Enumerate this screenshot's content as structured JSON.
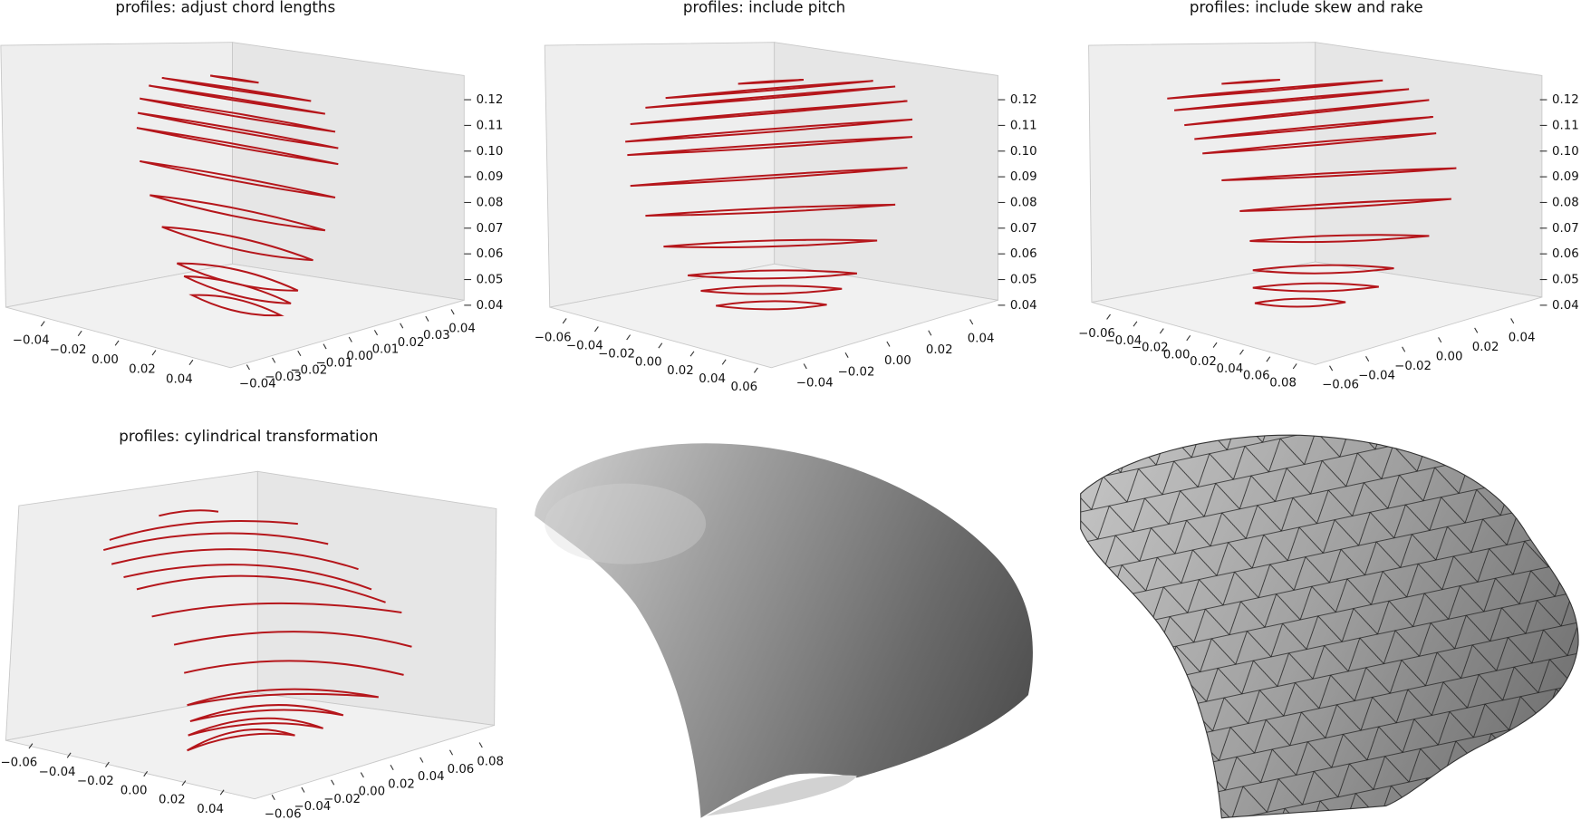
{
  "chart_data": [
    {
      "type": "line3d",
      "title": "profiles: adjust chord lengths",
      "color": "#b5161b",
      "xlim": [
        -0.05,
        0.05
      ],
      "xticks": [
        {
          "value": -0.04,
          "label": "−0.04"
        },
        {
          "value": -0.02,
          "label": "−0.02"
        },
        {
          "value": 0,
          "label": "0.00"
        },
        0.02,
        0.04
      ],
      "ylim": [
        -0.045,
        0.045
      ],
      "yticks": [
        {
          "value": -0.04,
          "label": "−0.04"
        },
        {
          "value": -0.03,
          "label": "−0.03"
        },
        {
          "value": -0.02,
          "label": "−0.02"
        },
        {
          "value": -0.01,
          "label": "−0.01"
        },
        {
          "value": 0,
          "label": "0.00"
        },
        0.01,
        0.02,
        0.03,
        0.04
      ],
      "zlim": [
        0.036,
        0.13
      ],
      "zticks": [
        0.04,
        0.05,
        0.06,
        0.07,
        0.08,
        0.09,
        {
          "value": 0.1,
          "label": "0.10"
        },
        0.11,
        0.12
      ],
      "profile_z": [
        0.128,
        0.124,
        0.12,
        0.114,
        0.108,
        0.102,
        0.089,
        0.076,
        0.064,
        0.051,
        0.046,
        0.04
      ]
    },
    {
      "type": "line3d",
      "title": "profiles: include pitch",
      "color": "#b5161b",
      "xlim": [
        -0.07,
        0.07
      ],
      "xticks": [
        {
          "value": -0.06,
          "label": "−0.06"
        },
        {
          "value": -0.04,
          "label": "−0.04"
        },
        {
          "value": -0.02,
          "label": "−0.02"
        },
        {
          "value": 0,
          "label": "0.00"
        },
        0.02,
        0.04,
        0.06
      ],
      "ylim": [
        -0.05,
        0.05
      ],
      "yticks": [
        {
          "value": -0.04,
          "label": "−0.04"
        },
        {
          "value": -0.02,
          "label": "−0.02"
        },
        {
          "value": 0,
          "label": "0.00"
        },
        0.02,
        0.04
      ],
      "zlim": [
        0.036,
        0.13
      ],
      "zticks": [
        0.04,
        0.05,
        0.06,
        0.07,
        0.08,
        0.09,
        {
          "value": 0.1,
          "label": "0.10"
        },
        0.11,
        0.12
      ],
      "profile_z": [
        0.127,
        0.124,
        0.121,
        0.115,
        0.108,
        0.102,
        0.09,
        0.077,
        0.064,
        0.052,
        0.046,
        0.04
      ]
    },
    {
      "type": "line3d",
      "title": "profiles: include skew and rake",
      "color": "#b5161b",
      "xlim": [
        -0.07,
        0.09
      ],
      "xticks": [
        {
          "value": -0.06,
          "label": "−0.06"
        },
        {
          "value": -0.04,
          "label": "−0.04"
        },
        {
          "value": -0.02,
          "label": "−0.02"
        },
        {
          "value": 0,
          "label": "0.00"
        },
        0.02,
        0.04,
        0.06,
        0.08
      ],
      "ylim": [
        -0.07,
        0.05
      ],
      "yticks": [
        {
          "value": -0.06,
          "label": "−0.06"
        },
        {
          "value": -0.04,
          "label": "−0.04"
        },
        {
          "value": -0.02,
          "label": "−0.02"
        },
        {
          "value": 0,
          "label": "0.00"
        },
        0.02,
        0.04
      ],
      "zlim": [
        0.036,
        0.13
      ],
      "zticks": [
        0.04,
        0.05,
        0.06,
        0.07,
        0.08,
        0.09,
        {
          "value": 0.1,
          "label": "0.10"
        },
        0.11,
        0.12
      ],
      "profile_z": [
        0.127,
        0.124,
        0.12,
        0.115,
        0.109,
        0.103,
        0.091,
        0.079,
        0.066,
        0.054,
        0.047,
        0.041
      ]
    },
    {
      "type": "curves3d",
      "title": "profiles: cylindrical transformation",
      "color": "#b5161b",
      "xlim": [
        -0.07,
        0.05
      ],
      "xticks": [
        {
          "value": -0.06,
          "label": "−0.06"
        },
        {
          "value": -0.04,
          "label": "−0.04"
        },
        {
          "value": -0.02,
          "label": "−0.02"
        },
        {
          "value": 0,
          "label": "0.00"
        },
        0.02,
        0.04
      ],
      "ylim": [
        -0.07,
        0.09
      ],
      "yticks": [
        {
          "value": -0.06,
          "label": "−0.06"
        },
        {
          "value": -0.04,
          "label": "−0.04"
        },
        {
          "value": -0.02,
          "label": "−0.02"
        },
        {
          "value": 0,
          "label": "0.00"
        },
        0.02,
        0.04,
        0.06,
        0.08
      ]
    }
  ]
}
